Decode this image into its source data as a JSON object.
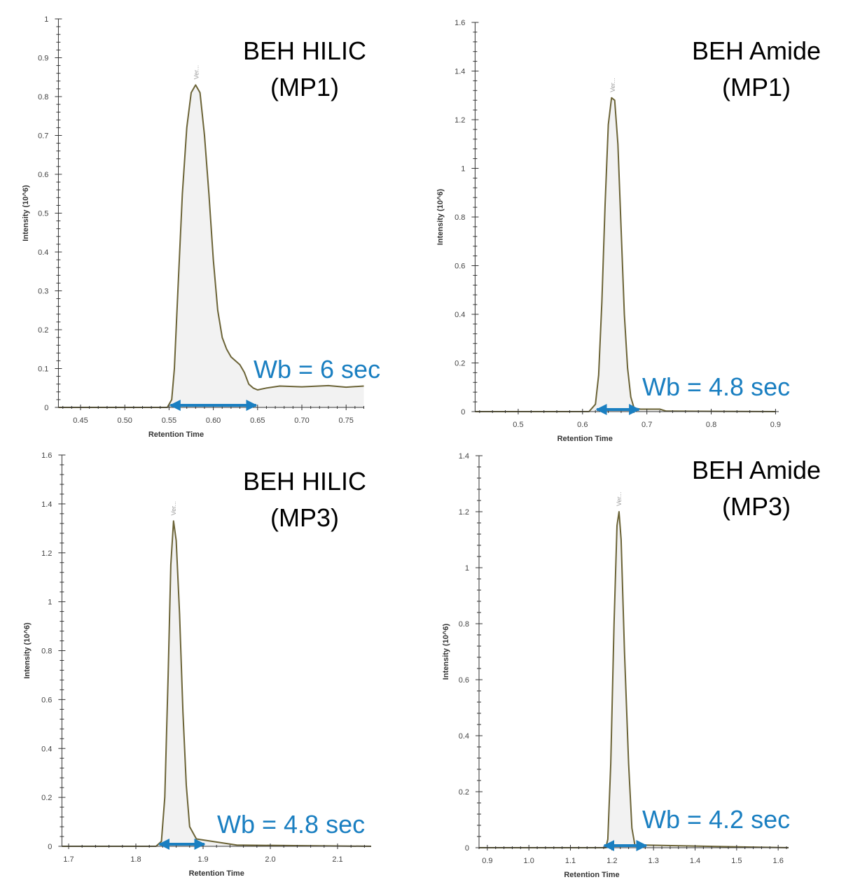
{
  "colors": {
    "trace": "#6b6336",
    "fill": "#f2f2f2",
    "axis": "#333333",
    "annotation": "#1a7fc1"
  },
  "chart_data": [
    {
      "type": "area",
      "title_lines": [
        "BEH HILIC",
        "(MP1)"
      ],
      "xlabel": "Retention Time",
      "ylabel": "Intensity (10^6)",
      "peak_label": "Ver...",
      "annotation": "Wb = 6 sec",
      "width_arrow": [
        0.55,
        0.65
      ],
      "xlim": [
        0.425,
        0.77
      ],
      "ylim": [
        0,
        1
      ],
      "xticks": [
        0.45,
        0.5,
        0.55,
        0.6,
        0.65,
        0.7,
        0.75
      ],
      "xtick_labels": [
        "0.45",
        "0.50",
        "0.55",
        "0.60",
        "0.65",
        "0.70",
        "0.75"
      ],
      "yticks": [
        0,
        0.1,
        0.2,
        0.3,
        0.4,
        0.5,
        0.6,
        0.7,
        0.8,
        0.9,
        1
      ],
      "ytick_labels": [
        "0",
        "0.1",
        "0.2",
        "0.3",
        "0.4",
        "0.5",
        "0.6",
        "0.7",
        "0.8",
        "0.9",
        "1"
      ],
      "peak_x": 0.581,
      "x": [
        0.425,
        0.548,
        0.553,
        0.556,
        0.56,
        0.565,
        0.57,
        0.575,
        0.58,
        0.585,
        0.59,
        0.595,
        0.6,
        0.605,
        0.61,
        0.615,
        0.62,
        0.63,
        0.635,
        0.64,
        0.645,
        0.65,
        0.66,
        0.675,
        0.7,
        0.73,
        0.75,
        0.77
      ],
      "y": [
        0,
        0,
        0.02,
        0.1,
        0.3,
        0.55,
        0.72,
        0.81,
        0.83,
        0.81,
        0.7,
        0.55,
        0.38,
        0.25,
        0.18,
        0.15,
        0.13,
        0.11,
        0.09,
        0.06,
        0.05,
        0.045,
        0.05,
        0.055,
        0.053,
        0.056,
        0.052,
        0.055
      ]
    },
    {
      "type": "area",
      "title_lines": [
        "BEH Amide",
        "(MP1)"
      ],
      "xlabel": "Retention Time",
      "ylabel": "Intensity (10^6)",
      "peak_label": "Ver...",
      "annotation": "Wb = 4.8 sec",
      "width_arrow": [
        0.62,
        0.69
      ],
      "xlim": [
        0.433,
        0.905
      ],
      "ylim": [
        0,
        1.6
      ],
      "xticks": [
        0.5,
        0.6,
        0.7,
        0.8,
        0.9
      ],
      "xtick_labels": [
        "0.5",
        "0.6",
        "0.7",
        "0.8",
        "0.9"
      ],
      "yticks": [
        0,
        0.2,
        0.4,
        0.6,
        0.8,
        1,
        1.2,
        1.4,
        1.6
      ],
      "ytick_labels": [
        "0",
        "0.2",
        "0.4",
        "0.6",
        "0.8",
        "1",
        "1.2",
        "1.4",
        "1.6"
      ],
      "peak_x": 0.647,
      "x": [
        0.433,
        0.61,
        0.62,
        0.625,
        0.63,
        0.635,
        0.64,
        0.645,
        0.65,
        0.655,
        0.66,
        0.665,
        0.67,
        0.675,
        0.68,
        0.69,
        0.72,
        0.73,
        0.9
      ],
      "y": [
        0,
        0,
        0.03,
        0.15,
        0.45,
        0.85,
        1.18,
        1.29,
        1.28,
        1.1,
        0.75,
        0.4,
        0.18,
        0.06,
        0.015,
        0.01,
        0.01,
        0.002,
        0
      ]
    },
    {
      "type": "area",
      "title_lines": [
        "BEH HILIC",
        "(MP3)"
      ],
      "xlabel": "Retention Time",
      "ylabel": "Intensity (10^6)",
      "peak_label": "Ver...",
      "annotation": "Wb = 4.8 sec",
      "width_arrow": [
        1.833,
        1.904
      ],
      "xlim": [
        1.69,
        2.15
      ],
      "ylim": [
        0,
        1.6
      ],
      "xticks": [
        1.7,
        1.8,
        1.9,
        2.0,
        2.1
      ],
      "xtick_labels": [
        "1.7",
        "1.8",
        "1.9",
        "2.0",
        "2.1"
      ],
      "yticks": [
        0,
        0.2,
        0.4,
        0.6,
        0.8,
        1,
        1.2,
        1.4,
        1.6
      ],
      "ytick_labels": [
        "0",
        "0.2",
        "0.4",
        "0.6",
        "0.8",
        "1",
        "1.2",
        "1.4",
        "1.6"
      ],
      "peak_x": 1.856,
      "x": [
        1.69,
        1.83,
        1.838,
        1.843,
        1.848,
        1.852,
        1.856,
        1.86,
        1.865,
        1.87,
        1.875,
        1.88,
        1.89,
        1.95,
        2.15
      ],
      "y": [
        0,
        0,
        0.02,
        0.2,
        0.7,
        1.15,
        1.33,
        1.25,
        0.95,
        0.55,
        0.25,
        0.08,
        0.03,
        0.005,
        0
      ]
    },
    {
      "type": "area",
      "title_lines": [
        "BEH Amide",
        "(MP3)"
      ],
      "xlabel": "Retention Time",
      "ylabel": "Intensity (10^6)",
      "peak_label": "Ver...",
      "annotation": "Wb = 4.2 sec",
      "width_arrow": [
        1.178,
        1.286
      ],
      "xlim": [
        0.88,
        1.625
      ],
      "ylim": [
        0,
        1.4
      ],
      "xticks": [
        0.9,
        1.0,
        1.1,
        1.2,
        1.3,
        1.4,
        1.5,
        1.6
      ],
      "xtick_labels": [
        "0.9",
        "1.0",
        "1.1",
        "1.2",
        "1.3",
        "1.4",
        "1.5",
        "1.6"
      ],
      "yticks": [
        0,
        0.2,
        0.4,
        0.6,
        0.8,
        1,
        1.2,
        1.4
      ],
      "ytick_labels": [
        "0",
        "0.2",
        "0.4",
        "0.6",
        "0.8",
        "1",
        "1.2",
        "1.4"
      ],
      "peak_x": 1.217,
      "x": [
        0.88,
        1.185,
        1.19,
        1.197,
        1.205,
        1.212,
        1.217,
        1.222,
        1.23,
        1.24,
        1.248,
        1.255,
        1.5,
        1.625
      ],
      "y": [
        0,
        0,
        0.03,
        0.3,
        0.8,
        1.15,
        1.2,
        1.1,
        0.7,
        0.3,
        0.07,
        0.01,
        0.003,
        0
      ]
    }
  ]
}
